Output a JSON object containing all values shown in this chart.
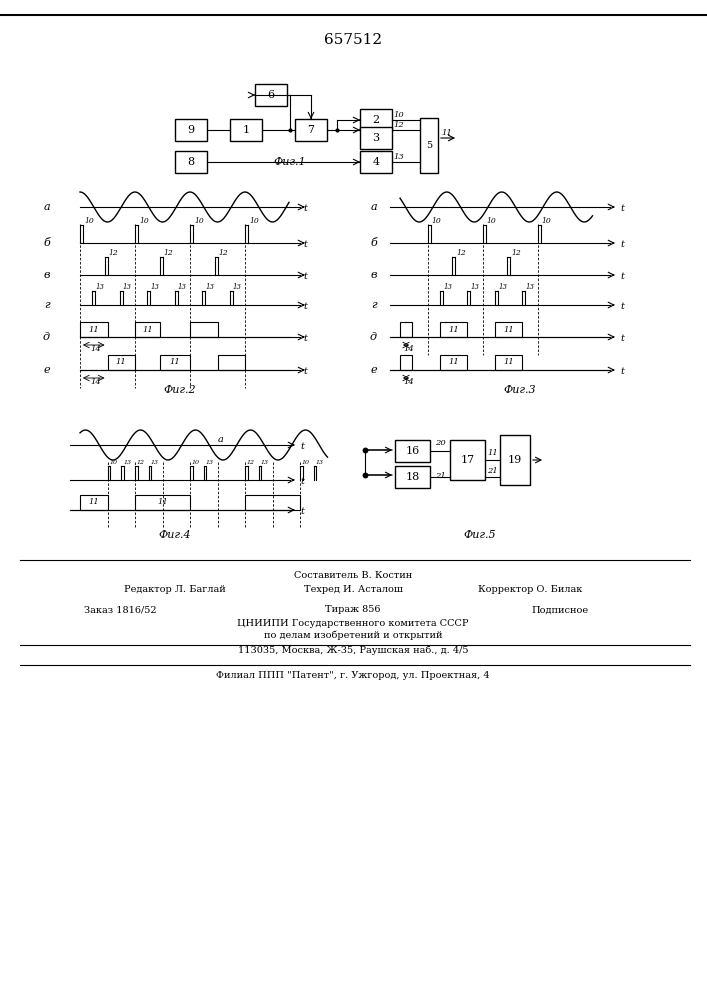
{
  "title": "657512",
  "fig_labels": [
    "Фиг.1",
    "Фиг.2",
    "Фиг.3",
    "Фиг.4",
    "Фиг.5"
  ],
  "footer_lines": [
    "Составитель В. Костин",
    "Редактор Л. Баглай    Техред И. Асталош  Корректор О. Билак",
    "Заказ 1816/52          Тираж 856          Подписное",
    "ЦНИИПИ Государственного комитета СССР",
    "по делам изобретений и открытий",
    "113035, Москва, Ж-35, Раушская наб., д. 4/5",
    "Филиал ППП \"Патент\", г. Ужгород, ул. Проектная, 4"
  ],
  "bg_color": "#f5f5f0"
}
